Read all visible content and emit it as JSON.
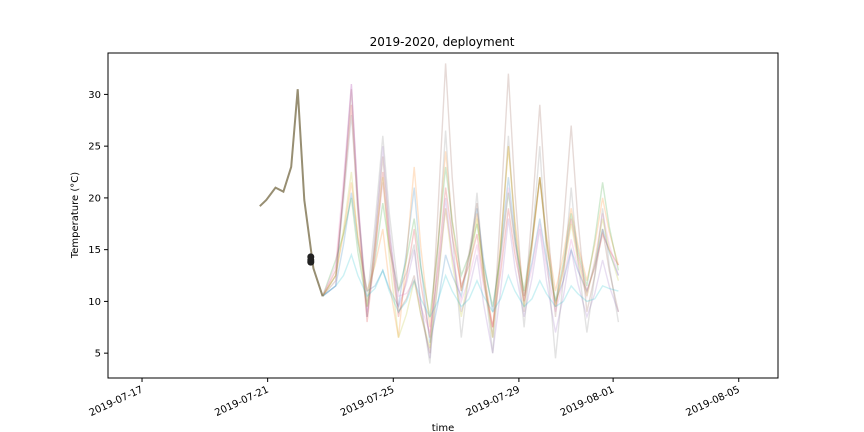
{
  "chart_data": {
    "type": "line",
    "title": "2019-2020, deployment",
    "xlabel": "time",
    "ylabel": "Temperature (°C)",
    "xlim": [
      "2019-07-15T22:00",
      "2019-08-06T06:00"
    ],
    "ylim": [
      2.6,
      34.0
    ],
    "grid": false,
    "legend": "none",
    "x_ticks": [
      "2019-07-17",
      "2019-07-21",
      "2019-07-25",
      "2019-07-29",
      "2019-08-01",
      "2019-08-05"
    ],
    "y_ticks": [
      5,
      10,
      15,
      20,
      25,
      30
    ],
    "series_opacity": 0.22,
    "highlight_series": {
      "color": "#8c8263",
      "x": [
        "2019-07-20T18:00",
        "2019-07-20T23:00",
        "2019-07-21T06:00",
        "2019-07-21T12:00",
        "2019-07-21T18:00",
        "2019-07-21T23:00",
        "2019-07-22T04:00",
        "2019-07-22T11:00",
        "2019-07-22T18:00"
      ],
      "y": [
        19.2,
        19.8,
        21.0,
        20.6,
        23.0,
        30.5,
        19.8,
        13.2,
        10.5
      ]
    },
    "marker_points": {
      "color": "#222222",
      "x": [
        "2019-07-22T09:00",
        "2019-07-22T09:00",
        "2019-07-22T09:00"
      ],
      "y": [
        14.0,
        14.3,
        13.8
      ]
    },
    "series": [
      {
        "color": "#1f77b4",
        "start": "2019-07-22T18:00",
        "mode": "diurnal",
        "base": 12.0,
        "amp": 9,
        "peaks": [
          20.5,
          13.0,
          21.0,
          14.5,
          19.0,
          22.0,
          18.0,
          15.0,
          17.0
        ],
        "troughs": [
          11.5,
          11.0,
          9.5,
          6.0,
          10.5,
          9.0,
          10.5,
          10.0,
          11.0,
          12.5
        ]
      },
      {
        "color": "#ff7f0e",
        "start": "2019-07-22T18:00",
        "mode": "diurnal",
        "peaks": [
          21.5,
          17.0,
          23.0,
          24.5,
          18.5,
          25.0,
          22.0,
          19.0,
          20.0
        ],
        "troughs": [
          12.5,
          11.0,
          6.5,
          7.5,
          11.0,
          7.5,
          10.5,
          11.0,
          12.0,
          13.5
        ]
      },
      {
        "color": "#2ca02c",
        "start": "2019-07-22T18:00",
        "mode": "diurnal",
        "peaks": [
          20.0,
          19.5,
          18.0,
          23.0,
          17.5,
          20.5,
          22.0,
          18.5,
          21.5
        ],
        "troughs": [
          14.0,
          9.5,
          11.0,
          8.5,
          12.5,
          9.5,
          11.0,
          10.0,
          11.5,
          13.0
        ]
      },
      {
        "color": "#d62728",
        "start": "2019-07-22T18:00",
        "mode": "diurnal",
        "peaks": [
          29.0,
          22.5,
          17.0,
          21.0,
          16.5,
          19.0,
          22.0,
          18.0,
          16.5
        ],
        "troughs": [
          13.0,
          8.0,
          8.5,
          6.5,
          11.5,
          7.5,
          10.0,
          9.5,
          11.0,
          13.5
        ]
      },
      {
        "color": "#9467bd",
        "start": "2019-07-22T18:00",
        "mode": "diurnal",
        "peaks": [
          31.0,
          25.0,
          15.0,
          20.0,
          14.5,
          18.0,
          17.0,
          15.0,
          14.0
        ],
        "troughs": [
          11.5,
          8.5,
          9.5,
          4.5,
          9.0,
          5.0,
          8.5,
          7.0,
          8.5,
          9.0
        ]
      },
      {
        "color": "#8c564b",
        "start": "2019-07-22T18:00",
        "mode": "diurnal",
        "peaks": [
          30.5,
          24.0,
          12.5,
          33.0,
          19.5,
          32.0,
          29.0,
          27.0,
          17.0
        ],
        "troughs": [
          12.0,
          8.5,
          9.0,
          5.0,
          11.0,
          6.5,
          9.0,
          8.5,
          9.0,
          9.0
        ]
      },
      {
        "color": "#e377c2",
        "start": "2019-07-22T18:00",
        "mode": "diurnal",
        "peaks": [
          31.0,
          21.5,
          12.0,
          19.0,
          15.5,
          21.0,
          17.5,
          16.0,
          18.5
        ],
        "troughs": [
          13.5,
          9.0,
          10.5,
          7.0,
          10.0,
          7.5,
          10.0,
          9.0,
          10.5,
          12.5
        ]
      },
      {
        "color": "#7f7f7f",
        "start": "2019-07-22T18:00",
        "mode": "diurnal",
        "peaks": [
          28.0,
          26.0,
          15.5,
          26.5,
          20.5,
          26.0,
          25.0,
          21.0,
          19.0
        ],
        "troughs": [
          12.5,
          10.0,
          11.0,
          4.0,
          6.5,
          5.0,
          7.5,
          4.5,
          7.0,
          8.0
        ]
      },
      {
        "color": "#bcbd22",
        "start": "2019-07-22T18:00",
        "mode": "diurnal",
        "peaks": [
          22.5,
          22.0,
          12.0,
          19.0,
          18.0,
          25.0,
          22.0,
          17.5,
          18.0
        ],
        "troughs": [
          12.5,
          9.5,
          6.5,
          5.5,
          8.5,
          6.5,
          9.5,
          9.5,
          10.5,
          12.0
        ]
      },
      {
        "color": "#17becf",
        "start": "2019-07-22T18:00",
        "mode": "diurnal",
        "peaks": [
          14.5,
          13.0,
          12.0,
          12.5,
          12.0,
          12.5,
          12.0,
          11.5,
          11.5
        ],
        "troughs": [
          11.5,
          10.5,
          9.0,
          8.5,
          9.5,
          9.0,
          9.5,
          9.5,
          10.0,
          11.0
        ]
      }
    ]
  }
}
